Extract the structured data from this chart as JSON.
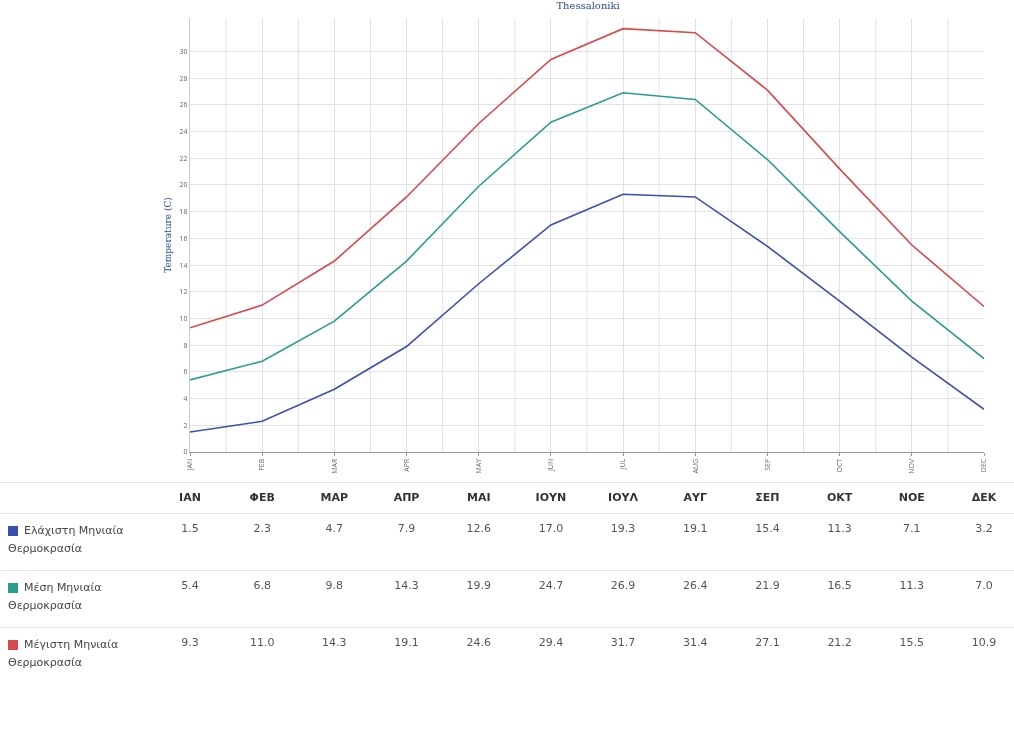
{
  "chart_data": {
    "type": "line",
    "title": "Thessaloniki",
    "ylabel": "Temperature (C)",
    "categories": [
      "JAN",
      "FEB",
      "MAR",
      "APR",
      "MAY",
      "JUN",
      "JUL",
      "AUG",
      "SEP",
      "OCT",
      "NOV",
      "DEC"
    ],
    "annotations": [
      "ΙΑΝ",
      "ΦΕΒ",
      "ΜΑΡ",
      "ΑΠΡ",
      "ΜΑΙ",
      "ΙΟΥΝ",
      "ΙΟΥΛ",
      "ΑΥΓ",
      "ΣΕΠ",
      "ΟΚΤ",
      "ΝΟΕ",
      "ΔΕΚ"
    ],
    "series": [
      {
        "name": "Ελάχιστη Μηνιαία Θερμοκρασία",
        "color": "#3a4fb0",
        "values": [
          1.5,
          2.3,
          4.7,
          7.9,
          12.6,
          17.0,
          19.3,
          19.1,
          15.4,
          11.3,
          7.1,
          3.2
        ],
        "value_labels": [
          "1.5",
          "2.3",
          "4.7",
          "7.9",
          "12.6",
          "17.0",
          "19.3",
          "19.1",
          "15.4",
          "11.3",
          "7.1",
          "3.2"
        ]
      },
      {
        "name": "Μέση Μηνιαία Θερμοκρασία",
        "color": "#2a9d8f",
        "values": [
          5.4,
          6.8,
          9.8,
          14.3,
          19.9,
          24.7,
          26.9,
          26.4,
          21.9,
          16.5,
          11.3,
          7.0
        ],
        "value_labels": [
          "5.4",
          "6.8",
          "9.8",
          "14.3",
          "19.9",
          "24.7",
          "26.9",
          "26.4",
          "21.9",
          "16.5",
          "11.3",
          "7.0"
        ]
      },
      {
        "name": "Μέγιστη Μηνιαία Θερμοκρασία",
        "color": "#d9484a",
        "values": [
          9.3,
          11.0,
          14.3,
          19.1,
          24.6,
          29.4,
          31.7,
          31.4,
          27.1,
          21.2,
          15.5,
          10.9
        ],
        "value_labels": [
          "9.3",
          "11.0",
          "14.3",
          "19.1",
          "24.6",
          "29.4",
          "31.7",
          "31.4",
          "27.1",
          "21.2",
          "15.5",
          "10.9"
        ]
      }
    ],
    "ylim": [
      0,
      32.5
    ],
    "yticks": [
      0,
      2,
      4,
      6,
      8,
      10,
      12,
      14,
      16,
      18,
      20,
      22,
      24,
      26,
      28,
      30
    ],
    "grid": true,
    "legend": "bottom",
    "marker": "none",
    "line_style": "solid"
  }
}
